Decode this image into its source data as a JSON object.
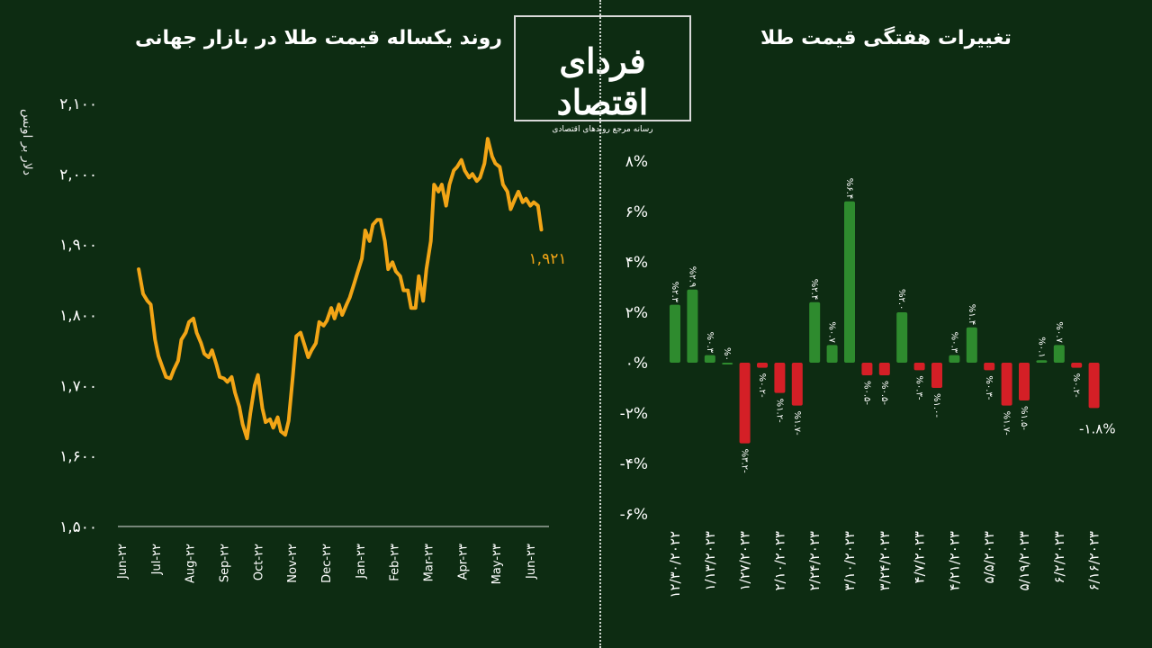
{
  "header": {
    "left_title": "روند یکساله قیمت طلا در بازار جهانی",
    "right_title": "تغییرات هفتگی قیمت طلا",
    "unit_label": "دلار بر اونس"
  },
  "logo": {
    "main": "فردای اقتصاد",
    "sub": "رسانه مرجع روندهای اقتصادی"
  },
  "colors": {
    "background": "#0d2c12",
    "line": "#f2a516",
    "positive": "#2e8b2e",
    "negative": "#d41f26",
    "text": "#ffffff"
  },
  "chart_data": [
    {
      "type": "line",
      "title": "روند یکساله قیمت طلا در بازار جهانی",
      "ylabel": "دلار بر اونس",
      "ylim": [
        1500,
        2100
      ],
      "yticks": [
        1500,
        1600,
        1700,
        1800,
        1900,
        2000,
        2100
      ],
      "ytick_labels": [
        "۱,۵۰۰",
        "۱,۶۰۰",
        "۱,۷۰۰",
        "۱,۸۰۰",
        "۱,۹۰۰",
        "۲,۰۰۰",
        "۲,۱۰۰"
      ],
      "xtick_labels": [
        "Jun-۲۲",
        "Jul-۲۲",
        "Aug-۲۲",
        "Sep-۲۲",
        "Oct-۲۲",
        "Nov-۲۲",
        "Dec-۲۲",
        "Jan-۲۳",
        "Feb-۲۳",
        "Mar-۲۳",
        "Apr-۲۳",
        "May-۲۳",
        "Jun-۲۳"
      ],
      "last_value_label": "۱,۹۲۱",
      "series": [
        {
          "x": [
            "2022-06-20",
            "2022-06-24",
            "2022-06-28",
            "2022-07-01",
            "2022-07-05",
            "2022-07-08",
            "2022-07-12",
            "2022-07-15",
            "2022-07-19",
            "2022-07-22",
            "2022-07-26",
            "2022-07-29",
            "2022-08-02",
            "2022-08-05",
            "2022-08-09",
            "2022-08-12",
            "2022-08-16",
            "2022-08-19",
            "2022-08-23",
            "2022-08-26",
            "2022-08-30",
            "2022-09-02",
            "2022-09-06",
            "2022-09-09",
            "2022-09-13",
            "2022-09-16",
            "2022-09-20",
            "2022-09-23",
            "2022-09-27",
            "2022-09-30",
            "2022-10-04",
            "2022-10-07",
            "2022-10-11",
            "2022-10-14",
            "2022-10-18",
            "2022-10-21",
            "2022-10-25",
            "2022-10-28",
            "2022-11-01",
            "2022-11-04",
            "2022-11-08",
            "2022-11-11",
            "2022-11-15",
            "2022-11-18",
            "2022-11-22",
            "2022-11-25",
            "2022-11-29",
            "2022-12-02",
            "2022-12-06",
            "2022-12-09",
            "2022-12-13",
            "2022-12-16",
            "2022-12-20",
            "2022-12-23",
            "2022-12-27",
            "2022-12-30",
            "2023-01-03",
            "2023-01-06",
            "2023-01-10",
            "2023-01-13",
            "2023-01-17",
            "2023-01-20",
            "2023-01-24",
            "2023-01-27",
            "2023-01-31",
            "2023-02-03",
            "2023-02-07",
            "2023-02-10",
            "2023-02-14",
            "2023-02-17",
            "2023-02-21",
            "2023-02-24",
            "2023-02-28",
            "2023-03-03",
            "2023-03-07",
            "2023-03-10",
            "2023-03-14",
            "2023-03-17",
            "2023-03-21",
            "2023-03-24",
            "2023-03-28",
            "2023-03-31",
            "2023-04-04",
            "2023-04-07",
            "2023-04-11",
            "2023-04-14",
            "2023-04-18",
            "2023-04-21",
            "2023-04-25",
            "2023-04-28",
            "2023-05-02",
            "2023-05-05",
            "2023-05-09",
            "2023-05-12",
            "2023-05-16",
            "2023-05-19",
            "2023-05-23",
            "2023-05-26",
            "2023-05-30",
            "2023-06-02",
            "2023-06-06",
            "2023-06-09",
            "2023-06-13",
            "2023-06-16",
            "2023-06-20",
            "2023-06-23"
          ],
          "y": [
            1865,
            1830,
            1820,
            1815,
            1765,
            1742,
            1725,
            1712,
            1710,
            1722,
            1735,
            1765,
            1775,
            1790,
            1795,
            1775,
            1760,
            1745,
            1740,
            1750,
            1730,
            1712,
            1710,
            1705,
            1712,
            1690,
            1670,
            1645,
            1625,
            1660,
            1700,
            1715,
            1668,
            1648,
            1652,
            1640,
            1655,
            1635,
            1630,
            1650,
            1715,
            1770,
            1775,
            1760,
            1740,
            1750,
            1760,
            1790,
            1785,
            1792,
            1810,
            1795,
            1815,
            1800,
            1815,
            1825,
            1845,
            1860,
            1880,
            1920,
            1905,
            1928,
            1935,
            1935,
            1905,
            1865,
            1875,
            1862,
            1855,
            1835,
            1835,
            1810,
            1810,
            1855,
            1820,
            1865,
            1905,
            1985,
            1975,
            1985,
            1955,
            1985,
            2005,
            2010,
            2020,
            2005,
            1995,
            2000,
            1990,
            1995,
            2015,
            2050,
            2025,
            2015,
            2010,
            1985,
            1975,
            1950,
            1965,
            1975,
            1960,
            1965,
            1955,
            1960,
            1955,
            1921
          ]
        }
      ]
    },
    {
      "type": "bar",
      "title": "تغییرات هفتگی قیمت طلا",
      "ylim": [
        -6,
        8
      ],
      "yticks": [
        -6,
        -4,
        -2,
        0,
        2,
        4,
        6,
        8
      ],
      "ytick_labels": [
        "-۶%",
        "-۴%",
        "-۲%",
        "۰%",
        "۲%",
        "۴%",
        "۶%",
        "۸%"
      ],
      "categories": [
        "۱۲/۳۰/۲۰۲۲",
        "",
        "۱/۱۳/۲۰۲۳",
        "",
        "۱/۲۷/۲۰۲۳",
        "",
        "۲/۱۰/۲۰۲۳",
        "",
        "۲/۲۴/۲۰۲۳",
        "",
        "۳/۱۰/۲۰۲۳",
        "",
        "۳/۲۴/۲۰۲۳",
        "",
        "۴/۷/۲۰۲۳",
        "",
        "۴/۲۱/۲۰۲۳",
        "",
        "۵/۵/۲۰۲۳",
        "",
        "۵/۱۹/۲۰۲۳",
        "",
        "۶/۲/۲۰۲۳",
        "",
        "۶/۱۶/۲۰۲۳"
      ],
      "values": [
        2.3,
        2.9,
        0.3,
        0.0,
        -3.2,
        -0.2,
        -1.2,
        -1.7,
        2.4,
        0.7,
        6.4,
        -0.5,
        -0.5,
        2.0,
        -0.3,
        -1.0,
        0.3,
        1.4,
        -0.3,
        -1.7,
        -1.5,
        0.1,
        0.7,
        -0.2,
        -1.8
      ],
      "data_labels": [
        "%۲.۳",
        "%۲.۹",
        "%۰.۳",
        "%۰",
        "%۳.۲-",
        "%۰.۲-",
        "%۱.۲-",
        "%۱.۷-",
        "%۲.۴",
        "%۰.۷",
        "%۶.۴",
        "%۰.۵-",
        "%۰.۵-",
        "%۲.۰",
        "%۰.۳-",
        "%۱.۰-",
        "%۰.۳",
        "%۱.۴",
        "%۰.۳-",
        "%۱.۷-",
        "%۱.۵-",
        "%۰.۱",
        "%۰.۷",
        "%۰.۲-",
        "-۱.۸%"
      ]
    }
  ]
}
